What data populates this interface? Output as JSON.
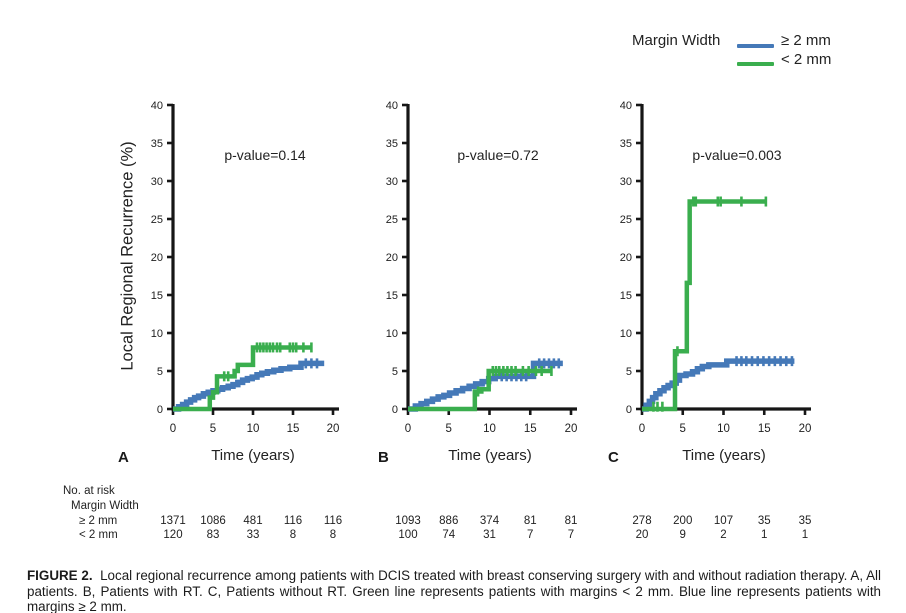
{
  "legend": {
    "title": "Margin Width",
    "items": [
      {
        "label": "≥ 2 mm",
        "color": "#4579b8"
      },
      {
        "label": "< 2 mm",
        "color": "#3aae4e"
      }
    ]
  },
  "colors": {
    "blue": "#4579b8",
    "green": "#3aae4e",
    "axis": "#161616"
  },
  "risk_table": {
    "title": "No. at risk",
    "subtitle": "Margin Width",
    "row_labels": [
      "≥ 2 mm",
      "< 2 mm"
    ]
  },
  "caption": {
    "label": "FIGURE 2.",
    "text": "Local regional recurrence among patients with DCIS treated with breast conserving surgery with and without radiation therapy. A, All patients. B, Patients with RT. C, Patients without RT. Green line represents patients with margins < 2 mm. Blue line represents patients with margins ≥ 2 mm."
  },
  "chart_data": [
    {
      "type": "line",
      "panel": "A",
      "subtitle": "p-value=0.14",
      "xlabel": "Time (years)",
      "ylabel": "Local Regional Recurrence (%)",
      "xlim": [
        0,
        20
      ],
      "ylim": [
        0,
        40
      ],
      "xticks": [
        0,
        5,
        10,
        15,
        20
      ],
      "yticks": [
        0,
        5,
        10,
        15,
        20,
        25,
        30,
        35,
        40
      ],
      "series": [
        {
          "name": "≥ 2 mm",
          "color": "#4579b8",
          "width": 5.5,
          "steps": [
            [
              0,
              0
            ],
            [
              0.7,
              0.3
            ],
            [
              1.2,
              0.6
            ],
            [
              1.7,
              0.9
            ],
            [
              2.2,
              1.2
            ],
            [
              2.7,
              1.5
            ],
            [
              3.2,
              1.7
            ],
            [
              3.8,
              2.0
            ],
            [
              4.4,
              2.2
            ],
            [
              5.0,
              2.4
            ],
            [
              5.6,
              2.6
            ],
            [
              6.2,
              2.8
            ],
            [
              6.9,
              3.0
            ],
            [
              7.5,
              3.2
            ],
            [
              8.1,
              3.5
            ],
            [
              8.7,
              3.8
            ],
            [
              9.3,
              4.0
            ],
            [
              9.9,
              4.2
            ],
            [
              10.5,
              4.5
            ],
            [
              11.1,
              4.7
            ],
            [
              11.8,
              4.9
            ],
            [
              12.6,
              5.1
            ],
            [
              13.5,
              5.3
            ],
            [
              14.6,
              5.5
            ],
            [
              16.0,
              6.0
            ],
            [
              18.9,
              6.0
            ]
          ],
          "censors": [
            [
              16.6,
              6.0
            ],
            [
              17.3,
              6.0
            ],
            [
              18.0,
              6.0
            ]
          ]
        },
        {
          "name": "< 2 mm",
          "color": "#3aae4e",
          "width": 4.5,
          "steps": [
            [
              0,
              0
            ],
            [
              4.6,
              1.5
            ],
            [
              5.0,
              2.2
            ],
            [
              5.5,
              4.3
            ],
            [
              7.7,
              5.0
            ],
            [
              8.1,
              5.8
            ],
            [
              10.0,
              8.1
            ],
            [
              17.4,
              8.1
            ]
          ],
          "censors": [
            [
              6.4,
              4.3
            ],
            [
              6.9,
              4.3
            ],
            [
              10.5,
              8.1
            ],
            [
              10.9,
              8.1
            ],
            [
              11.3,
              8.1
            ],
            [
              11.7,
              8.1
            ],
            [
              12.1,
              8.1
            ],
            [
              12.5,
              8.1
            ],
            [
              13.0,
              8.1
            ],
            [
              13.4,
              8.1
            ],
            [
              14.6,
              8.1
            ],
            [
              15.0,
              8.1
            ],
            [
              15.4,
              8.1
            ],
            [
              16.3,
              8.1
            ],
            [
              17.3,
              8.1
            ]
          ]
        }
      ],
      "risk": [
        [
          "1371",
          "1086",
          "481",
          "116",
          "116"
        ],
        [
          "120",
          "83",
          "33",
          "8",
          "8"
        ]
      ]
    },
    {
      "type": "line",
      "panel": "B",
      "subtitle": "p-value=0.72",
      "xlabel": "Time (years)",
      "ylabel": "Local Regional Recurrence (%)",
      "xlim": [
        0,
        20
      ],
      "ylim": [
        0,
        40
      ],
      "xticks": [
        0,
        5,
        10,
        15,
        20
      ],
      "yticks": [
        0,
        5,
        10,
        15,
        20,
        25,
        30,
        35,
        40
      ],
      "series": [
        {
          "name": "≥ 2 mm",
          "color": "#4579b8",
          "width": 5.5,
          "steps": [
            [
              0,
              0
            ],
            [
              0.9,
              0.4
            ],
            [
              1.6,
              0.7
            ],
            [
              2.3,
              1.0
            ],
            [
              3.0,
              1.3
            ],
            [
              3.7,
              1.6
            ],
            [
              4.4,
              1.8
            ],
            [
              5.1,
              2.1
            ],
            [
              5.9,
              2.4
            ],
            [
              6.7,
              2.7
            ],
            [
              7.5,
              3.0
            ],
            [
              8.3,
              3.3
            ],
            [
              9.1,
              3.6
            ],
            [
              9.9,
              4.0
            ],
            [
              10.7,
              4.3
            ],
            [
              15.4,
              6.0
            ],
            [
              19.0,
              6.0
            ]
          ],
          "censors": [
            [
              11.5,
              4.3
            ],
            [
              12.1,
              4.3
            ],
            [
              12.7,
              4.3
            ],
            [
              13.3,
              4.3
            ],
            [
              13.9,
              4.3
            ],
            [
              14.5,
              4.3
            ],
            [
              16.1,
              6.0
            ],
            [
              16.7,
              6.0
            ],
            [
              17.3,
              6.0
            ],
            [
              17.9,
              6.0
            ],
            [
              18.5,
              6.0
            ]
          ]
        },
        {
          "name": "< 2 mm",
          "color": "#3aae4e",
          "width": 4.5,
          "steps": [
            [
              0,
              0
            ],
            [
              8.2,
              2.3
            ],
            [
              9.0,
              2.6
            ],
            [
              9.9,
              5.0
            ],
            [
              17.7,
              5.0
            ]
          ],
          "censors": [
            [
              8.6,
              2.3
            ],
            [
              10.4,
              5.0
            ],
            [
              10.8,
              5.0
            ],
            [
              11.2,
              5.0
            ],
            [
              11.7,
              5.0
            ],
            [
              12.2,
              5.0
            ],
            [
              12.7,
              5.0
            ],
            [
              13.2,
              5.0
            ],
            [
              14.1,
              5.0
            ],
            [
              14.8,
              5.0
            ],
            [
              15.7,
              5.0
            ],
            [
              16.4,
              5.0
            ],
            [
              17.6,
              5.0
            ]
          ]
        }
      ],
      "risk": [
        [
          "1093",
          "886",
          "374",
          "81",
          "81"
        ],
        [
          "100",
          "74",
          "31",
          "7",
          "7"
        ]
      ]
    },
    {
      "type": "line",
      "panel": "C",
      "subtitle": "p-value=0.003",
      "xlabel": "Time (years)",
      "ylabel": "Local Regional Recurrence (%)",
      "xlim": [
        0,
        20
      ],
      "ylim": [
        0,
        40
      ],
      "xticks": [
        0,
        5,
        10,
        15,
        20
      ],
      "yticks": [
        0,
        5,
        10,
        15,
        20,
        25,
        30,
        35,
        40
      ],
      "series": [
        {
          "name": "≥ 2 mm",
          "color": "#4579b8",
          "width": 5.5,
          "steps": [
            [
              0,
              0
            ],
            [
              0.5,
              0.5
            ],
            [
              0.9,
              1.0
            ],
            [
              1.3,
              1.5
            ],
            [
              1.7,
              2.0
            ],
            [
              2.2,
              2.4
            ],
            [
              2.7,
              2.8
            ],
            [
              3.2,
              3.1
            ],
            [
              3.7,
              3.4
            ],
            [
              4.2,
              3.8
            ],
            [
              4.6,
              4.4
            ],
            [
              5.4,
              4.6
            ],
            [
              6.2,
              4.9
            ],
            [
              6.8,
              5.3
            ],
            [
              7.4,
              5.6
            ],
            [
              8.2,
              5.8
            ],
            [
              10.4,
              6.3
            ],
            [
              18.7,
              6.3
            ]
          ],
          "censors": [
            [
              11.6,
              6.3
            ],
            [
              12.2,
              6.3
            ],
            [
              12.8,
              6.3
            ],
            [
              13.5,
              6.3
            ],
            [
              14.2,
              6.3
            ],
            [
              14.9,
              6.3
            ],
            [
              15.6,
              6.3
            ],
            [
              16.3,
              6.3
            ],
            [
              17.0,
              6.3
            ],
            [
              17.7,
              6.3
            ],
            [
              18.4,
              6.3
            ]
          ]
        },
        {
          "name": "< 2 mm",
          "color": "#3aae4e",
          "width": 4.5,
          "steps": [
            [
              0,
              0
            ],
            [
              4.05,
              7.6
            ],
            [
              5.5,
              16.6
            ],
            [
              5.85,
              27.3
            ],
            [
              15.3,
              27.3
            ]
          ],
          "censors": [
            [
              1.4,
              0.3
            ],
            [
              1.9,
              0.3
            ],
            [
              2.5,
              0.3
            ],
            [
              4.35,
              7.6
            ],
            [
              6.3,
              27.3
            ],
            [
              6.6,
              27.3
            ],
            [
              9.3,
              27.3
            ],
            [
              9.65,
              27.3
            ],
            [
              12.2,
              27.3
            ],
            [
              15.2,
              27.3
            ]
          ]
        }
      ],
      "risk": [
        [
          "278",
          "200",
          "107",
          "35",
          "35"
        ],
        [
          "20",
          "9",
          "2",
          "1",
          "1"
        ]
      ]
    }
  ]
}
